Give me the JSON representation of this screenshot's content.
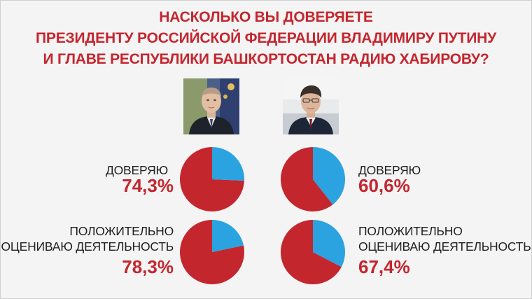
{
  "title_lines": [
    "НАСКОЛЬКО ВЫ ДОВЕРЯЕТЕ",
    "ПРЕЗИДЕНТУ РОССИЙСКОЙ ФЕДЕРАЦИИ ВЛАДИМИРУ ПУТИНУ",
    "И ГЛАВЕ РЕСПУБЛИКИ БАШКОРТОСТАН РАДИЮ ХАБИРОВУ?"
  ],
  "colors": {
    "accent_red": "#c4262e",
    "pie_main": "#c4262e",
    "pie_rest": "#2aa3e0",
    "background": "#f4f4f4"
  },
  "chart_data": [
    {
      "type": "pie",
      "label_lines": [
        "ДОВЕРЯЮ"
      ],
      "value_text": "74,3%",
      "slices": [
        {
          "label": "ДОВЕРЯЮ",
          "value": 74.3,
          "color": "#c4262e"
        },
        {
          "label": "",
          "value": 25.7,
          "color": "#2aa3e0"
        }
      ]
    },
    {
      "type": "pie",
      "label_lines": [
        "ДОВЕРЯЮ"
      ],
      "value_text": "60,6%",
      "slices": [
        {
          "label": "ДОВЕРЯЮ",
          "value": 60.6,
          "color": "#c4262e"
        },
        {
          "label": "",
          "value": 39.4,
          "color": "#2aa3e0"
        }
      ]
    },
    {
      "type": "pie",
      "label_lines": [
        "ПОЛОЖИТЕЛЬНО",
        "ОЦЕНИВАЮ ДЕЯТЕЛЬНОСТЬ"
      ],
      "value_text": "78,3%",
      "slices": [
        {
          "label": "ПОЛОЖИТЕЛЬНО ОЦЕНИВАЮ ДЕЯТЕЛЬНОСТЬ",
          "value": 78.3,
          "color": "#c4262e"
        },
        {
          "label": "",
          "value": 21.7,
          "color": "#2aa3e0"
        }
      ]
    },
    {
      "type": "pie",
      "label_lines": [
        "ПОЛОЖИТЕЛЬНО",
        "ОЦЕНИВАЮ ДЕЯТЕЛЬНОСТЬ"
      ],
      "value_text": "67,4%",
      "slices": [
        {
          "label": "ПОЛОЖИТЕЛЬНО ОЦЕНИВАЮ ДЕЯТЕЛЬНОСТЬ",
          "value": 67.4,
          "color": "#c4262e"
        },
        {
          "label": "",
          "value": 32.6,
          "color": "#2aa3e0"
        }
      ]
    }
  ]
}
